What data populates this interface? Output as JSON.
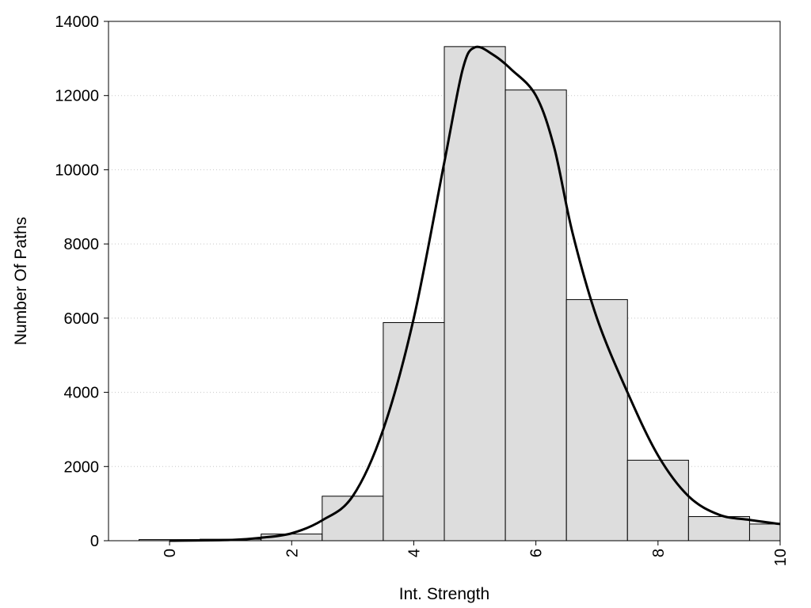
{
  "chart_data": {
    "type": "bar",
    "title": "",
    "xlabel": "Int. Strength",
    "ylabel": "Number Of Paths",
    "xlim": [
      -1,
      10
    ],
    "ylim": [
      0,
      14000
    ],
    "xticks": [
      "0",
      "2",
      "4",
      "6",
      "8",
      "10"
    ],
    "yticks": [
      "0",
      "2000",
      "4000",
      "6000",
      "8000",
      "10000",
      "12000",
      "14000"
    ],
    "grid": "horizontal dotted",
    "bars": {
      "bin_width": 1,
      "centers": [
        0,
        1,
        2,
        3,
        4,
        5,
        6,
        7,
        8,
        9,
        10
      ],
      "values": [
        30,
        40,
        180,
        1200,
        5880,
        13320,
        12150,
        6500,
        2170,
        650,
        450
      ]
    },
    "density_curve": {
      "x": [
        0,
        1,
        1.5,
        2,
        2.5,
        3,
        3.5,
        4,
        4.5,
        4.8,
        5,
        5.3,
        5.6,
        6,
        6.3,
        6.6,
        7,
        7.5,
        8,
        8.5,
        9,
        9.5,
        10
      ],
      "y": [
        0,
        20,
        80,
        200,
        550,
        1200,
        3000,
        6000,
        10200,
        12700,
        13300,
        13100,
        12700,
        12000,
        10600,
        8300,
        6000,
        4000,
        2300,
        1200,
        700,
        560,
        450
      ]
    },
    "colors": {
      "bar_fill": "#dddddd",
      "bar_stroke": "#000000",
      "curve": "#000000",
      "grid": "#c8c8c8"
    }
  }
}
